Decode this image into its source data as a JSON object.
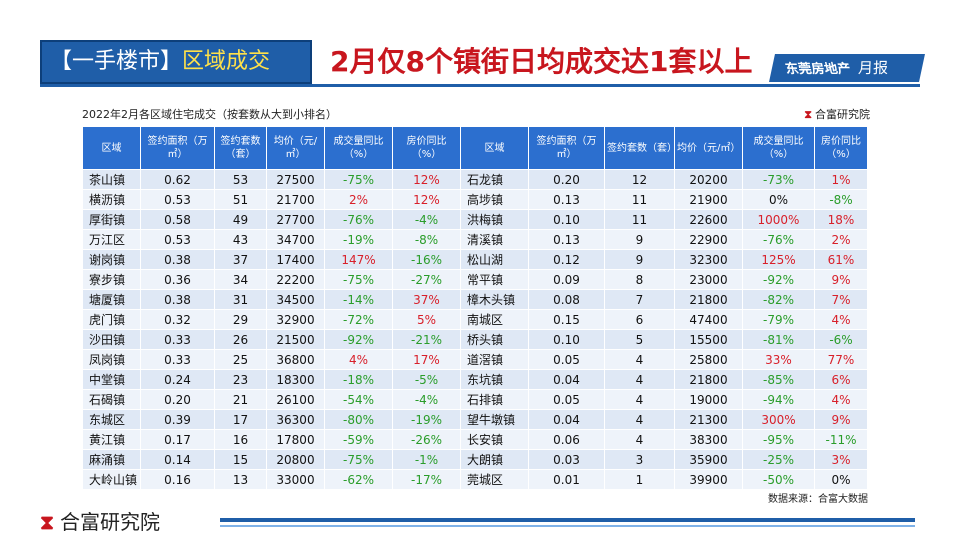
{
  "header": {
    "tag_prefix": "【一手楼市】",
    "tag_highlight": "区域成交",
    "headline": "2月仅8个镇街日均成交达1套以上",
    "brand": "东莞房地产",
    "brand_script": "月报"
  },
  "subtitle": "2022年2月各区域住宅成交（按套数从大到小排名）",
  "org_top": "合富研究院",
  "columns": [
    "区域",
    "签约面积（万㎡）",
    "签约套数（套）",
    "均价（元/㎡）",
    "成交量同比（%）",
    "房价同比（%）",
    "区域",
    "签约面积（万㎡）",
    "签约套数（套）",
    "均价（元/㎡）",
    "成交量同比（%）",
    "房价同比（%）"
  ],
  "rows": [
    [
      "茶山镇",
      "0.62",
      "53",
      "27500",
      "-75%",
      "12%",
      "石龙镇",
      "0.20",
      "12",
      "20200",
      "-73%",
      "1%"
    ],
    [
      "横沥镇",
      "0.53",
      "51",
      "21700",
      "2%",
      "12%",
      "高埗镇",
      "0.13",
      "11",
      "21900",
      "0%",
      "-8%"
    ],
    [
      "厚街镇",
      "0.58",
      "49",
      "27700",
      "-76%",
      "-4%",
      "洪梅镇",
      "0.10",
      "11",
      "22600",
      "1000%",
      "18%"
    ],
    [
      "万江区",
      "0.53",
      "43",
      "34700",
      "-19%",
      "-8%",
      "清溪镇",
      "0.13",
      "9",
      "22900",
      "-76%",
      "2%"
    ],
    [
      "谢岗镇",
      "0.38",
      "37",
      "17400",
      "147%",
      "-16%",
      "松山湖",
      "0.12",
      "9",
      "32300",
      "125%",
      "61%"
    ],
    [
      "寮步镇",
      "0.36",
      "34",
      "22200",
      "-75%",
      "-27%",
      "常平镇",
      "0.09",
      "8",
      "23000",
      "-92%",
      "9%"
    ],
    [
      "塘厦镇",
      "0.38",
      "31",
      "34500",
      "-14%",
      "37%",
      "樟木头镇",
      "0.08",
      "7",
      "21800",
      "-82%",
      "7%"
    ],
    [
      "虎门镇",
      "0.32",
      "29",
      "32900",
      "-72%",
      "5%",
      "南城区",
      "0.15",
      "6",
      "47400",
      "-79%",
      "4%"
    ],
    [
      "沙田镇",
      "0.33",
      "26",
      "21500",
      "-92%",
      "-21%",
      "桥头镇",
      "0.10",
      "5",
      "15500",
      "-81%",
      "-6%"
    ],
    [
      "凤岗镇",
      "0.33",
      "25",
      "36800",
      "4%",
      "17%",
      "道滘镇",
      "0.05",
      "4",
      "25800",
      "33%",
      "77%"
    ],
    [
      "中堂镇",
      "0.24",
      "23",
      "18300",
      "-18%",
      "-5%",
      "东坑镇",
      "0.04",
      "4",
      "21800",
      "-85%",
      "6%"
    ],
    [
      "石碣镇",
      "0.20",
      "21",
      "26100",
      "-54%",
      "-4%",
      "石排镇",
      "0.05",
      "4",
      "19000",
      "-94%",
      "4%"
    ],
    [
      "东城区",
      "0.39",
      "17",
      "36300",
      "-80%",
      "-19%",
      "望牛墩镇",
      "0.04",
      "4",
      "21300",
      "300%",
      "9%"
    ],
    [
      "黄江镇",
      "0.17",
      "16",
      "17800",
      "-59%",
      "-26%",
      "长安镇",
      "0.06",
      "4",
      "38300",
      "-95%",
      "-11%"
    ],
    [
      "麻涌镇",
      "0.14",
      "15",
      "20800",
      "-75%",
      "-1%",
      "大朗镇",
      "0.03",
      "3",
      "35900",
      "-25%",
      "3%"
    ],
    [
      "大岭山镇",
      "0.16",
      "13",
      "33000",
      "-62%",
      "-17%",
      "莞城区",
      "0.01",
      "1",
      "39900",
      "-50%",
      "0%"
    ]
  ],
  "source": "数据来源：合富大数据",
  "footer": {
    "org": "合富研究院"
  },
  "colors": {
    "header_blue": "#1f5ea8",
    "table_header": "#2c6fcf",
    "negative": "#2a9d2a",
    "positive": "#d8202a",
    "headline_red": "#c8161e"
  }
}
